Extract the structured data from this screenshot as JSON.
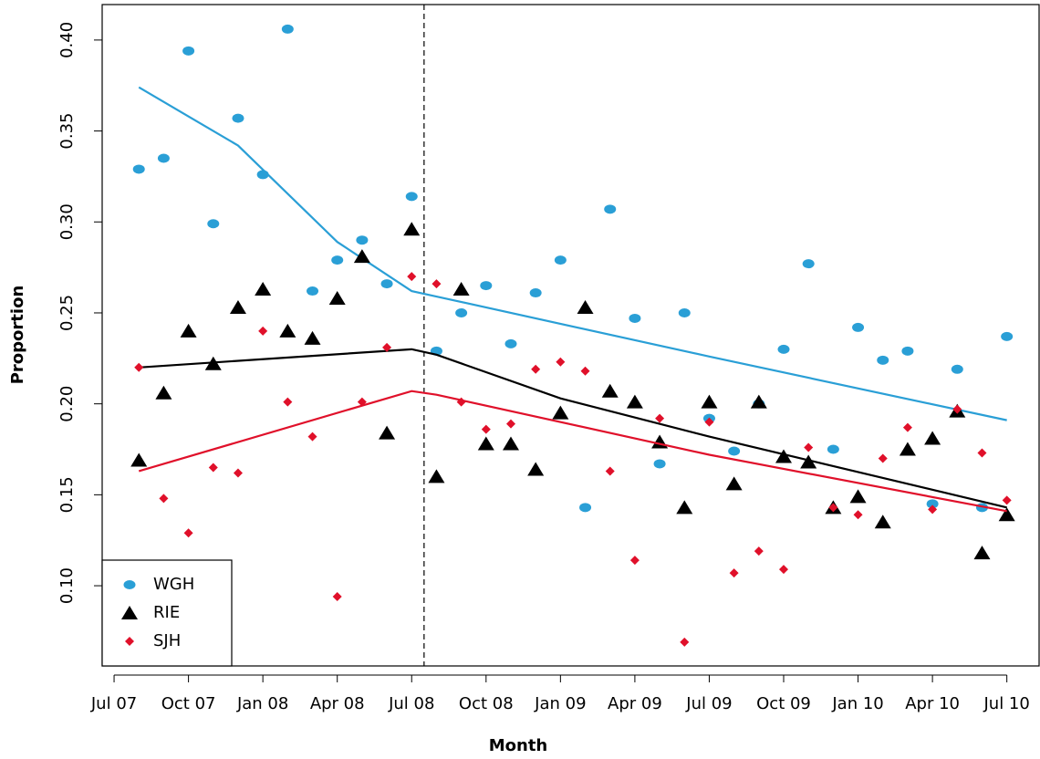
{
  "chart_data": {
    "type": "scatter",
    "xlabel": "Month",
    "ylabel": "Proportion",
    "x": [
      1,
      2,
      3,
      4,
      5,
      6,
      7,
      8,
      9,
      10,
      11,
      12,
      13,
      14,
      15,
      16,
      17,
      18,
      19,
      20,
      21,
      22,
      23,
      24,
      25,
      26,
      27,
      28,
      29,
      30,
      31,
      32,
      33,
      34,
      35,
      36
    ],
    "series": [
      {
        "name": "WGH",
        "color": "#2a9fd6",
        "marker": "circle",
        "values": [
          0.329,
          0.335,
          0.394,
          0.299,
          0.357,
          0.326,
          0.406,
          0.262,
          0.279,
          0.29,
          0.266,
          0.314,
          0.229,
          0.25,
          0.265,
          0.233,
          0.261,
          0.279,
          0.143,
          0.307,
          0.247,
          0.167,
          0.25,
          0.192,
          0.174,
          0.2,
          0.23,
          0.277,
          0.175,
          0.242,
          0.224,
          0.229,
          0.145,
          0.219,
          0.143,
          0.237
        ],
        "fit": {
          "x": [
            1,
            5,
            9,
            12,
            13,
            24,
            36
          ],
          "values": [
            0.374,
            0.342,
            0.289,
            0.262,
            0.259,
            0.226,
            0.191
          ]
        }
      },
      {
        "name": "RIE",
        "color": "#000000",
        "marker": "triangle",
        "values": [
          0.169,
          0.206,
          0.24,
          0.222,
          0.253,
          0.263,
          0.24,
          0.236,
          0.258,
          0.281,
          0.184,
          0.296,
          0.16,
          0.263,
          0.178,
          0.178,
          0.164,
          0.195,
          0.253,
          0.207,
          0.201,
          0.179,
          0.143,
          0.201,
          0.156,
          0.201,
          0.171,
          0.168,
          0.143,
          0.149,
          0.135,
          0.175,
          0.181,
          0.196,
          0.118,
          0.139
        ],
        "fit": {
          "x": [
            1,
            12,
            13,
            18,
            24,
            36
          ],
          "values": [
            0.22,
            0.23,
            0.227,
            0.203,
            0.182,
            0.143
          ]
        }
      },
      {
        "name": "SJH",
        "color": "#e0102a",
        "marker": "diamond",
        "values": [
          0.22,
          0.148,
          0.129,
          0.165,
          0.162,
          0.24,
          0.201,
          0.182,
          0.094,
          0.201,
          0.231,
          0.27,
          0.266,
          0.201,
          0.186,
          0.189,
          0.219,
          0.223,
          0.218,
          0.163,
          0.114,
          0.192,
          0.069,
          0.19,
          0.107,
          0.119,
          0.109,
          0.176,
          0.143,
          0.139,
          0.17,
          0.187,
          0.142,
          0.197,
          0.173,
          0.147
        ],
        "fit": {
          "x": [
            1,
            12,
            13,
            24,
            36
          ],
          "values": [
            0.163,
            0.207,
            0.205,
            0.172,
            0.141
          ]
        }
      }
    ],
    "xlim": [
      -0.48,
      37.3
    ],
    "xticks": [
      {
        "value": 0,
        "label": "Jul 07"
      },
      {
        "value": 3,
        "label": "Oct 07"
      },
      {
        "value": 6,
        "label": "Jan 08"
      },
      {
        "value": 9,
        "label": "Apr 08"
      },
      {
        "value": 12,
        "label": "Jul 08"
      },
      {
        "value": 15,
        "label": "Oct 08"
      },
      {
        "value": 18,
        "label": "Jan 09"
      },
      {
        "value": 21,
        "label": "Apr 09"
      },
      {
        "value": 24,
        "label": "Jul 09"
      },
      {
        "value": 27,
        "label": "Oct 09"
      },
      {
        "value": 30,
        "label": "Jan 10"
      },
      {
        "value": 33,
        "label": "Apr 10"
      },
      {
        "value": 36,
        "label": "Jul 10"
      }
    ],
    "ylim": [
      0.0559,
      0.4195
    ],
    "yticks": [
      {
        "value": 0.1,
        "label": "0.10"
      },
      0.15,
      {
        "value": 0.2,
        "label": "0.20"
      },
      0.25,
      {
        "value": 0.3,
        "label": "0.30"
      },
      0.35,
      {
        "value": 0.4,
        "label": "0.40"
      }
    ],
    "vline": 12.5,
    "legend": "bottom-left",
    "grid": false
  }
}
